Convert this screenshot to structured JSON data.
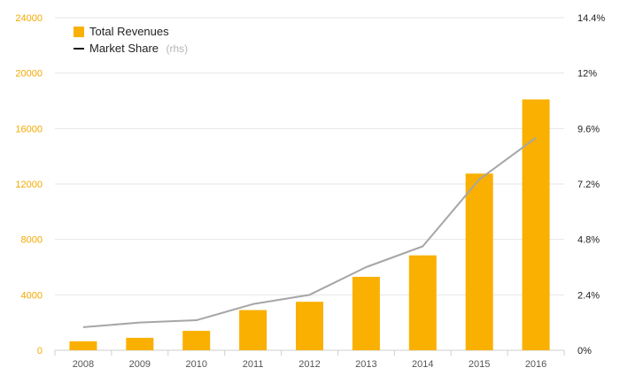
{
  "chart_data": {
    "type": "bar",
    "categories": [
      "2008",
      "2009",
      "2010",
      "2011",
      "2012",
      "2013",
      "2014",
      "2015",
      "2016"
    ],
    "series": [
      {
        "name": "Total Revenues",
        "kind": "bar",
        "axis": "left",
        "color": "#f9b000",
        "values": [
          650,
          900,
          1400,
          2900,
          3500,
          5300,
          6850,
          12750,
          18100
        ]
      },
      {
        "name": "Market Share",
        "kind": "line",
        "axis": "right",
        "color": "#a6a6a6",
        "values": [
          1.0,
          1.2,
          1.3,
          2.0,
          2.4,
          3.6,
          4.5,
          7.4,
          9.2
        ]
      }
    ],
    "left_axis": {
      "min": 0,
      "max": 24000,
      "ticks": [
        0,
        4000,
        8000,
        12000,
        16000,
        20000,
        24000
      ],
      "tick_labels": [
        "0",
        "4000",
        "8000",
        "12000",
        "16000",
        "20000",
        "24000"
      ],
      "color": "#f5a900"
    },
    "right_axis": {
      "min": 0,
      "max": 14.4,
      "tick_labels": [
        "0%",
        "2.4%",
        "4.8%",
        "7.2%",
        "9.6%",
        "12%",
        "14.4%"
      ],
      "color": "#222222"
    },
    "legend": {
      "position": "top-left",
      "items": [
        {
          "label": "Total Revenues",
          "suffix": ""
        },
        {
          "label": "Market Share",
          "suffix": "(rhs)"
        }
      ]
    },
    "grid": true
  }
}
